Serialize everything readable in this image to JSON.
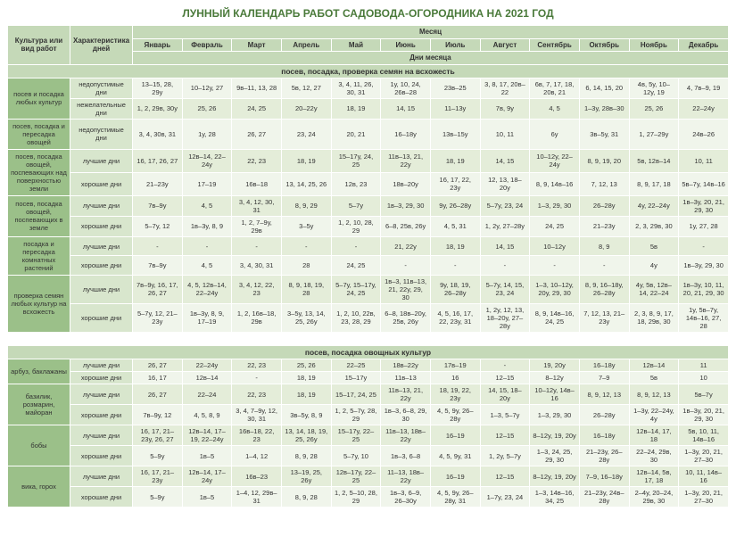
{
  "title": "ЛУННЫЙ КАЛЕНДАРЬ РАБОТ САДОВОДА-ОГОРОДНИКА НА 2021 ГОД",
  "headers": {
    "crop": "Культура или вид работ",
    "char": "Характеристика дней",
    "month_group": "Месяц",
    "days_group": "Дни месяца",
    "months": [
      "Январь",
      "Февраль",
      "Март",
      "Апрель",
      "Май",
      "Июнь",
      "Июль",
      "Август",
      "Сентябрь",
      "Октябрь",
      "Ноябрь",
      "Декабрь"
    ]
  },
  "sections": [
    {
      "title": "посев, посадка, проверка семян на всхожесть",
      "groups": [
        {
          "crop": "посев и посадка любых культур",
          "rows": [
            {
              "char": "недопустимые дни",
              "vals": [
                "13–15, 28, 29у",
                "10–12у, 27",
                "9в–11, 13, 28",
                "5в, 12, 27",
                "3, 4, 11, 26, 30, 31",
                "1у, 10, 24, 26в–28",
                "23в–25",
                "3, 8, 17, 20в–22",
                "6в, 7, 17, 18, 20в, 21",
                "6, 14, 15, 20",
                "4в, 5у, 10–12у, 19",
                "4, 7в–9, 19"
              ]
            },
            {
              "char": "нежелательные дни",
              "vals": [
                "1, 2, 29в, 30у",
                "25, 26",
                "24, 25",
                "20–22у",
                "18, 19",
                "14, 15",
                "11–13у",
                "7в, 9у",
                "4, 5",
                "1–3у, 28в–30",
                "25, 26",
                "22–24у"
              ]
            }
          ]
        },
        {
          "crop": "посев, посадка и пересадка овощей",
          "rows": [
            {
              "char": "недопустимые дни",
              "vals": [
                "3, 4, 30в, 31",
                "1у, 28",
                "26, 27",
                "23, 24",
                "20, 21",
                "16–18у",
                "13в–15у",
                "10, 11",
                "6у",
                "3в–5у, 31",
                "1, 27–29у",
                "24в–26"
              ]
            }
          ]
        },
        {
          "crop": "посев, посадка овощей, поспевающих над поверхностью земли",
          "rows": [
            {
              "char": "лучшие дни",
              "vals": [
                "16, 17, 26, 27",
                "12в–14, 22–24у",
                "22, 23",
                "18, 19",
                "15–17у, 24, 25",
                "11в–13, 21, 22у",
                "18, 19",
                "14, 15",
                "10–12у, 22–24у",
                "8, 9, 19, 20",
                "5в, 12в–14",
                "10, 11"
              ]
            },
            {
              "char": "хорошие дни",
              "vals": [
                "21–23у",
                "17–19",
                "16в–18",
                "13, 14, 25, 26",
                "12в, 23",
                "18в–20у",
                "16, 17, 22, 23у",
                "12, 13, 18–20у",
                "8, 9, 14в–16",
                "7, 12, 13",
                "8, 9, 17, 18",
                "5в–7у, 14в–16"
              ]
            }
          ]
        },
        {
          "crop": "посев, посадка овощей, поспевающих в земле",
          "rows": [
            {
              "char": "лучшие дни",
              "vals": [
                "7в–9у",
                "4, 5",
                "3, 4, 12, 30, 31",
                "8, 9, 29",
                "5–7у",
                "1в–3, 29, 30",
                "9у, 26–28у",
                "5–7у, 23, 24",
                "1–3, 29, 30",
                "26–28у",
                "4у, 22–24у",
                "1в–3у, 20, 21, 29, 30"
              ]
            },
            {
              "char": "хорошие дни",
              "vals": [
                "5–7у, 12",
                "1в–3у, 8, 9",
                "1, 2, 7–9у, 29в",
                "3–5у",
                "1, 2, 10, 28, 29",
                "6–8, 25в, 26у",
                "4, 5, 31",
                "1, 2у, 27–28у",
                "24, 25",
                "21–23у",
                "2, 3, 29в, 30",
                "1у, 27, 28"
              ]
            }
          ]
        },
        {
          "crop": "посадка и пересадка комнатных растений",
          "rows": [
            {
              "char": "лучшие дни",
              "vals": [
                "-",
                "-",
                "-",
                "-",
                "-",
                "21, 22у",
                "18, 19",
                "14, 15",
                "10–12у",
                "8, 9",
                "5в",
                "-"
              ]
            },
            {
              "char": "хорошие дни",
              "vals": [
                "7в–9у",
                "4, 5",
                "3, 4, 30, 31",
                "28",
                "24, 25",
                "-",
                "-",
                "-",
                "-",
                "-",
                "4у",
                "1в–3у, 29, 30"
              ]
            }
          ]
        },
        {
          "crop": "проверка семян любых культур на всхожесть",
          "rows": [
            {
              "char": "лучшие дни",
              "vals": [
                "7в–9у, 16, 17, 26, 27",
                "4, 5, 12в–14, 22–24у",
                "3, 4, 12, 22, 23",
                "8, 9, 18, 19, 28",
                "5–7у, 15–17у, 24, 25",
                "1в–3, 11в–13, 21, 22у, 29, 30",
                "9у, 18, 19, 26–28у",
                "5–7у, 14, 15, 23, 24",
                "1–3, 10–12у, 20у, 29, 30",
                "8, 9, 16–18у, 26–28у",
                "4у, 5в, 12в–14, 22–24",
                "1в–3у, 10, 11, 20, 21, 29, 30"
              ]
            },
            {
              "char": "хорошие дни",
              "vals": [
                "5–7у, 12, 21–23у",
                "1в–3у, 8, 9, 17–19",
                "1, 2, 16в–18, 29в",
                "3–5у, 13, 14, 25, 26у",
                "1, 2, 10, 22в, 23, 28, 29",
                "6–8, 18в–20у, 25в, 26у",
                "4, 5, 16, 17, 22, 23у, 31",
                "1, 2у, 12, 13, 18–20у, 27–28у",
                "8, 9, 14в–16, 24, 25",
                "7, 12, 13, 21–23у",
                "2, 3, 8, 9, 17, 18, 29в, 30",
                "1у, 5в–7у, 14в–16, 27, 28"
              ]
            }
          ]
        }
      ]
    },
    {
      "title": "посев, посадка овощных культур",
      "groups": [
        {
          "crop": "арбуз, баклажаны",
          "rows": [
            {
              "char": "лучшие дни",
              "vals": [
                "26, 27",
                "22–24у",
                "22, 23",
                "25, 26",
                "22–25",
                "18в–22у",
                "17в–19",
                "-",
                "19, 20у",
                "16–18у",
                "12в–14",
                "11"
              ]
            },
            {
              "char": "хорошие дни",
              "vals": [
                "16, 17",
                "12в–14",
                "-",
                "18, 19",
                "15–17у",
                "11в–13",
                "16",
                "12–15",
                "8–12у",
                "7–9",
                "5в",
                "10"
              ]
            }
          ]
        },
        {
          "crop": "базилик, розмарин, майоран",
          "rows": [
            {
              "char": "лучшие дни",
              "vals": [
                "26, 27",
                "22–24",
                "22, 23",
                "18, 19",
                "15–17, 24, 25",
                "11в–13, 21, 22у",
                "18, 19, 22, 23у",
                "14, 15, 18–20у",
                "10–12у, 14в–16",
                "8, 9, 12, 13",
                "8, 9, 12, 13",
                "5в–7у"
              ]
            },
            {
              "char": "хорошие дни",
              "vals": [
                "7в–9у, 12",
                "4, 5, 8, 9",
                "3, 4, 7–9у, 12, 30, 31",
                "3в–5у, 8, 9",
                "1, 2, 5–7у, 28, 29",
                "1в–3, 6–8, 29, 30",
                "4, 5, 9у, 26–28у",
                "1–3, 5–7у",
                "1–3, 29, 30",
                "26–28у",
                "1–3у, 22–24у, 4у",
                "1в–3у, 20, 21, 29, 30"
              ]
            }
          ]
        },
        {
          "crop": "бобы",
          "rows": [
            {
              "char": "лучшие дни",
              "vals": [
                "16, 17, 21–23у, 26, 27",
                "12в–14, 17–19, 22–24у",
                "16в–18, 22, 23",
                "13, 14, 18, 19, 25, 26у",
                "15–17у, 22–25",
                "11в–13, 18в–22у",
                "16–19",
                "12–15",
                "8–12у, 19, 20у",
                "16–18у",
                "12в–14, 17, 18",
                "5в, 10, 11, 14в–16"
              ]
            },
            {
              "char": "хорошие дни",
              "vals": [
                "5–9у",
                "1в–5",
                "1–4, 12",
                "8, 9, 28",
                "5–7у, 10",
                "1в–3, 6–8",
                "4, 5, 9у, 31",
                "1, 2у, 5–7у",
                "1–3, 24, 25, 29, 30",
                "21–23у, 26–28у",
                "22–24, 29в, 30",
                "1–3у, 20, 21, 27–30"
              ]
            }
          ]
        },
        {
          "crop": "вика, горох",
          "rows": [
            {
              "char": "лучшие дни",
              "vals": [
                "16, 17, 21–23у",
                "12в–14, 17–24у",
                "16в–23",
                "13–19, 25, 26у",
                "12в–17у, 22–25",
                "11–13, 18в–22у",
                "16–19",
                "12–15",
                "8–12у, 19, 20у",
                "7–9, 16–18у",
                "12в–14, 5в, 17, 18",
                "10, 11, 14в–16"
              ]
            },
            {
              "char": "хорошие дни",
              "vals": [
                "5–9у",
                "1в–5",
                "1–4, 12, 29в–31",
                "8, 9, 28",
                "1, 2, 5–10, 28, 29",
                "1в–3, 6–9, 26–30у",
                "4, 5, 9у, 26–28у, 31",
                "1–7у, 23, 24",
                "1–3, 14в–16, 34, 25",
                "21–23у, 24в–28у",
                "2–4у, 20–24, 29в, 30",
                "1–3у, 20, 21, 27–30"
              ]
            }
          ]
        }
      ]
    }
  ],
  "colors": {
    "title": "#4a7a3a",
    "header_bg": "#c5d9b8",
    "crop_bg": "#9bc089",
    "char_bg": "#d8e6cd",
    "row0": "#f0f5eb",
    "row1": "#e4edd9"
  }
}
